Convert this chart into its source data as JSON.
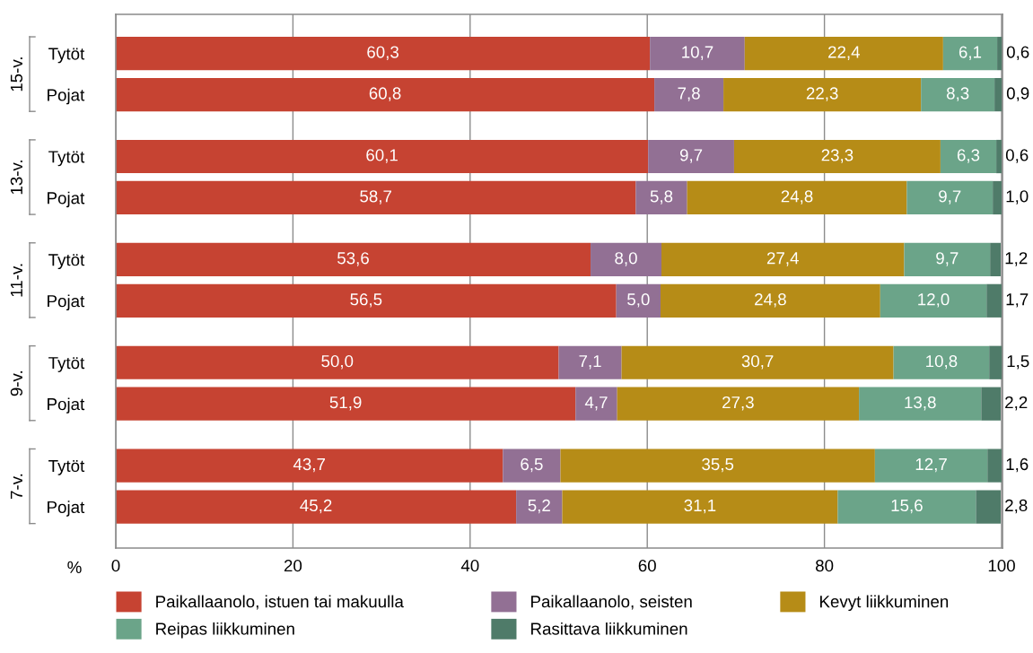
{
  "chart_data": {
    "type": "bar",
    "orientation": "horizontal",
    "stacked": true,
    "categories": [
      "Tytöt",
      "Pojat",
      "Tytöt",
      "Pojat",
      "Tytöt",
      "Pojat",
      "Tytöt",
      "Pojat",
      "Tytöt",
      "Pojat"
    ],
    "annotations": [
      "15-v.",
      "13-v.",
      "11-v.",
      "9-v.",
      "7-v."
    ],
    "xlabel": "%",
    "series": [
      {
        "name": "Paikallaanolo, istuen tai makuulla",
        "color": "#c64332",
        "values": [
          60.3,
          60.8,
          60.1,
          58.7,
          53.6,
          56.5,
          50.0,
          51.9,
          43.7,
          45.2
        ],
        "value_labels": [
          "60,3",
          "60,8",
          "60,1",
          "58,7",
          "53,6",
          "56,5",
          "50,0",
          "51,9",
          "43,7",
          "45,2"
        ]
      },
      {
        "name": "Paikallaanolo, seisten",
        "color": "#927094",
        "values": [
          10.7,
          7.8,
          9.7,
          5.8,
          8.0,
          5.0,
          7.1,
          4.7,
          6.5,
          5.2
        ],
        "value_labels": [
          "10,7",
          "7,8",
          "9,7",
          "5,8",
          "8,0",
          "5,0",
          "7,1",
          "4,7",
          "6,5",
          "5,2"
        ]
      },
      {
        "name": "Kevyt liikkuminen",
        "color": "#b68c17",
        "values": [
          22.4,
          22.3,
          23.3,
          24.8,
          27.4,
          24.8,
          30.7,
          27.3,
          35.5,
          31.1
        ],
        "value_labels": [
          "22,4",
          "22,3",
          "23,3",
          "24,8",
          "27,4",
          "24,8",
          "30,7",
          "27,3",
          "35,5",
          "31,1"
        ]
      },
      {
        "name": "Reipas liikkuminen",
        "color": "#6ba489",
        "values": [
          6.1,
          8.3,
          6.3,
          9.7,
          9.7,
          12.0,
          10.8,
          13.8,
          12.7,
          15.6
        ],
        "value_labels": [
          "6,1",
          "8,3",
          "6,3",
          "9,7",
          "9,7",
          "12,0",
          "10,8",
          "13,8",
          "12,7",
          "15,6"
        ]
      },
      {
        "name": "Rasittava liikkuminen",
        "color": "#4f7b69",
        "values": [
          0.6,
          0.9,
          0.6,
          1.0,
          1.2,
          1.7,
          1.5,
          2.2,
          1.6,
          2.8
        ],
        "value_labels": [
          "0,6",
          "0,9",
          "0,6",
          "1,0",
          "1,2",
          "1,7",
          "1,5",
          "2,2",
          "1,6",
          "2,8"
        ]
      }
    ],
    "xlim": [
      0,
      100.1
    ],
    "xticks": [
      0,
      20,
      40,
      60,
      80,
      100
    ],
    "grid": "x",
    "legend": "bottom"
  }
}
